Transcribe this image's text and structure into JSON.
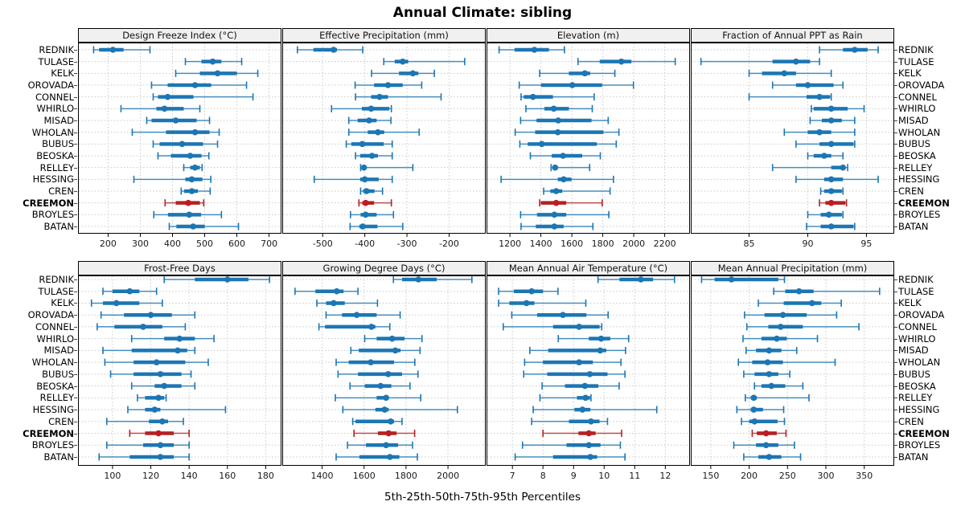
{
  "title": "Annual Climate: sibling",
  "footer": "5th-25th-50th-75th-95th Percentiles",
  "colors": {
    "series": "#1c76b4",
    "highlight": "#b22222",
    "highlight_dot": "#c01a22",
    "grid": "#c9c9c9",
    "strip_bg": "#f0f0f0",
    "panel_border": "#000000",
    "tick": "#000000",
    "tick_label": "#1a1a1a"
  },
  "chart_data": {
    "type": "trellis-percentile-whisker",
    "title": "Annual Climate: sibling",
    "xlabel": "5th-25th-50th-75th-95th Percentiles",
    "layout": {
      "grid_rows": 2,
      "grid_cols": 4,
      "row_gridlines": "dotted",
      "legend": "none"
    },
    "percentiles": [
      5,
      25,
      50,
      75,
      95
    ],
    "stations": [
      "REDNIK",
      "TULASE",
      "KELK",
      "OROVADA",
      "CONNEL",
      "WHIRLO",
      "MISAD",
      "WHOLAN",
      "BUBUS",
      "BEOSKA",
      "RELLEY",
      "HESSING",
      "CREN",
      "CREEMON",
      "BROYLES",
      "BATAN"
    ],
    "highlight_station": "CREEMON",
    "panels": [
      {
        "title": "Design Freeze Index (°C)",
        "ticks": [
          200,
          300,
          400,
          500,
          600,
          700
        ],
        "xlim": [
          109,
          736
        ],
        "values": [
          [
            155,
            172,
            215,
            248,
            330
          ],
          [
            440,
            490,
            525,
            552,
            615
          ],
          [
            410,
            485,
            540,
            600,
            665
          ],
          [
            335,
            385,
            470,
            520,
            630
          ],
          [
            340,
            355,
            385,
            465,
            650
          ],
          [
            240,
            350,
            375,
            435,
            485
          ],
          [
            320,
            335,
            410,
            475,
            515
          ],
          [
            275,
            380,
            470,
            515,
            545
          ],
          [
            340,
            360,
            430,
            495,
            540
          ],
          [
            355,
            395,
            455,
            490,
            513
          ],
          [
            435,
            455,
            470,
            485,
            492
          ],
          [
            280,
            440,
            460,
            493,
            519
          ],
          [
            427,
            436,
            460,
            479,
            517
          ],
          [
            377,
            410,
            449,
            485,
            497
          ],
          [
            342,
            386,
            452,
            489,
            552
          ],
          [
            390,
            412,
            464,
            500,
            605
          ]
        ]
      },
      {
        "title": "Effective Precipitation (mm)",
        "ticks": [
          -500,
          -400,
          -300,
          -200
        ],
        "xlim": [
          -594,
          -115
        ],
        "values": [
          [
            -560,
            -522,
            -474,
            -466,
            -405
          ],
          [
            -355,
            -329,
            -310,
            -297,
            -163
          ],
          [
            -384,
            -319,
            -286,
            -273,
            -235
          ],
          [
            -423,
            -378,
            -345,
            -310,
            -265
          ],
          [
            -422,
            -385,
            -365,
            -345,
            -219
          ],
          [
            -479,
            -407,
            -385,
            -342,
            -337
          ],
          [
            -438,
            -417,
            -390,
            -372,
            -338
          ],
          [
            -438,
            -393,
            -369,
            -354,
            -271
          ],
          [
            -444,
            -432,
            -406,
            -355,
            -335
          ],
          [
            -422,
            -411,
            -383,
            -369,
            -335
          ],
          [
            -410,
            -406,
            -402,
            -398,
            -286
          ],
          [
            -520,
            -411,
            -400,
            -367,
            -335
          ],
          [
            -410,
            -404,
            -396,
            -377,
            -358
          ],
          [
            -414,
            -406,
            -398,
            -378,
            -337
          ],
          [
            -434,
            -410,
            -398,
            -372,
            -332
          ],
          [
            -435,
            -413,
            -405,
            -370,
            -310
          ]
        ]
      },
      {
        "title": "Elevation (m)",
        "ticks": [
          1200,
          1400,
          1600,
          1800,
          2000,
          2200
        ],
        "xlim": [
          1054,
          2358
        ],
        "values": [
          [
            1130,
            1230,
            1358,
            1452,
            1552
          ],
          [
            1640,
            1780,
            1920,
            1985,
            2268
          ],
          [
            1392,
            1581,
            1684,
            1718,
            1878
          ],
          [
            1260,
            1401,
            1603,
            1796,
            1998
          ],
          [
            1272,
            1289,
            1349,
            1478,
            1744
          ],
          [
            1303,
            1423,
            1483,
            1581,
            1732
          ],
          [
            1269,
            1372,
            1512,
            1727,
            1835
          ],
          [
            1234,
            1363,
            1509,
            1804,
            1904
          ],
          [
            1264,
            1315,
            1406,
            1761,
            1887
          ],
          [
            1332,
            1470,
            1543,
            1667,
            1784
          ],
          [
            1466,
            1475,
            1492,
            1509,
            1715
          ],
          [
            1143,
            1509,
            1547,
            1598,
            1869
          ],
          [
            1418,
            1461,
            1499,
            1538,
            1847
          ],
          [
            1392,
            1401,
            1499,
            1564,
            1796
          ],
          [
            1269,
            1375,
            1487,
            1564,
            1839
          ],
          [
            1272,
            1367,
            1487,
            1547,
            1736
          ]
        ]
      },
      {
        "title": "Fraction of Annual PPT as Rain",
        "ticks": [
          85,
          90,
          95
        ],
        "xlim": [
          80.1,
          97.3
        ],
        "values": [
          [
            91,
            93,
            94,
            95.1,
            96
          ],
          [
            80.9,
            87,
            89,
            90.2,
            91
          ],
          [
            85,
            86.1,
            88,
            89,
            92
          ],
          [
            87,
            89,
            90,
            92.2,
            93
          ],
          [
            85,
            89.9,
            91,
            91.9,
            92
          ],
          [
            90.3,
            90.5,
            92,
            93.4,
            94.8
          ],
          [
            90.2,
            91.2,
            92,
            92.9,
            94
          ],
          [
            88,
            90,
            91,
            92,
            94
          ],
          [
            89,
            91,
            92,
            93.9,
            94
          ],
          [
            90,
            90.5,
            91.4,
            92,
            93
          ],
          [
            87,
            92,
            93,
            93.2,
            93.4
          ],
          [
            89,
            91.4,
            92,
            93,
            96
          ],
          [
            91.1,
            91.4,
            92,
            92.9,
            93
          ],
          [
            91,
            91.5,
            92,
            93.2,
            93.3
          ],
          [
            90,
            91.1,
            91.8,
            92.9,
            93
          ],
          [
            89.9,
            91.1,
            92,
            93.9,
            94
          ]
        ]
      },
      {
        "title": "Frost-Free Days",
        "ticks": [
          100,
          120,
          140,
          160,
          180
        ],
        "xlim": [
          82.4,
          187.8
        ],
        "values": [
          [
            127,
            143,
            160,
            171,
            182
          ],
          [
            95,
            100,
            109,
            114,
            123
          ],
          [
            89,
            95,
            102,
            114,
            126
          ],
          [
            94,
            106,
            120,
            131,
            143
          ],
          [
            92,
            101,
            116,
            126,
            138
          ],
          [
            110,
            127,
            135,
            143,
            153
          ],
          [
            95,
            110,
            134,
            139,
            143
          ],
          [
            96,
            111,
            123,
            138,
            150
          ],
          [
            99,
            111,
            125,
            136,
            141
          ],
          [
            110,
            122,
            127,
            136,
            143
          ],
          [
            113,
            117,
            124,
            127,
            128
          ],
          [
            108,
            117,
            122,
            125,
            159
          ],
          [
            97,
            119,
            126,
            129,
            137
          ],
          [
            109,
            117,
            124,
            132,
            140
          ],
          [
            97,
            116,
            125,
            132,
            140
          ],
          [
            93,
            109,
            125,
            132,
            140
          ]
        ]
      },
      {
        "title": "Growing Degree Days (°C)",
        "ticks": [
          1400,
          1600,
          1800,
          2000
        ],
        "xlim": [
          1214,
          2176
        ],
        "values": [
          [
            1740,
            1781,
            1859,
            1946,
            2114
          ],
          [
            1271,
            1368,
            1470,
            1502,
            1571
          ],
          [
            1375,
            1419,
            1455,
            1508,
            1664
          ],
          [
            1419,
            1495,
            1565,
            1660,
            1772
          ],
          [
            1385,
            1414,
            1635,
            1654,
            1723
          ],
          [
            1603,
            1660,
            1734,
            1793,
            1876
          ],
          [
            1537,
            1575,
            1749,
            1774,
            1867
          ],
          [
            1467,
            1527,
            1632,
            1743,
            1842
          ],
          [
            1476,
            1571,
            1715,
            1781,
            1857
          ],
          [
            1533,
            1603,
            1679,
            1730,
            1819
          ],
          [
            1463,
            1660,
            1705,
            1718,
            1870
          ],
          [
            1499,
            1654,
            1698,
            1717,
            2045
          ],
          [
            1546,
            1559,
            1727,
            1743,
            1781
          ],
          [
            1552,
            1666,
            1717,
            1755,
            1841
          ],
          [
            1521,
            1609,
            1705,
            1762,
            1831
          ],
          [
            1467,
            1578,
            1723,
            1768,
            1854
          ]
        ]
      },
      {
        "title": "Mean Annual Air Temperature (°C)",
        "ticks": [
          7,
          8,
          9,
          10,
          11,
          12
        ],
        "xlim": [
          6.18,
          12.78
        ],
        "values": [
          [
            9.8,
            10.5,
            11.2,
            11.6,
            12.3
          ],
          [
            6.55,
            7.05,
            7.63,
            8.0,
            8.49
          ],
          [
            6.55,
            6.9,
            7.46,
            7.72,
            9.4
          ],
          [
            6.98,
            7.81,
            8.65,
            9.42,
            10.13
          ],
          [
            6.7,
            8.33,
            9.18,
            9.85,
            9.92
          ],
          [
            8.5,
            9.5,
            9.9,
            10.2,
            10.8
          ],
          [
            7.57,
            8.17,
            9.87,
            10.07,
            10.7
          ],
          [
            7.4,
            8.0,
            9.18,
            9.63,
            10.55
          ],
          [
            7.37,
            8.14,
            9.53,
            10.11,
            10.68
          ],
          [
            7.97,
            8.72,
            9.37,
            9.81,
            10.49
          ],
          [
            7.9,
            9.11,
            9.39,
            9.54,
            9.57
          ],
          [
            7.68,
            9.03,
            9.29,
            9.55,
            11.72
          ],
          [
            7.63,
            8.85,
            9.57,
            9.85,
            10.11
          ],
          [
            8.0,
            9.16,
            9.5,
            9.72,
            10.57
          ],
          [
            7.33,
            8.77,
            9.5,
            9.88,
            10.53
          ],
          [
            7.09,
            8.33,
            9.55,
            9.77,
            10.68
          ]
        ]
      },
      {
        "title": "Mean Annual Precipitation (mm)",
        "ticks": [
          150,
          200,
          250,
          300,
          350
        ],
        "xlim": [
          125,
          388
        ],
        "values": [
          [
            138,
            155,
            177,
            238,
            246
          ],
          [
            232,
            247,
            265,
            284,
            370
          ],
          [
            212,
            245,
            282,
            294,
            320
          ],
          [
            194,
            220,
            244,
            275,
            314
          ],
          [
            197,
            225,
            241,
            270,
            343
          ],
          [
            192,
            216,
            236,
            249,
            289
          ],
          [
            196,
            209,
            226,
            242,
            262
          ],
          [
            186,
            204,
            224,
            244,
            312
          ],
          [
            193,
            207,
            226,
            238,
            253
          ],
          [
            207,
            216,
            229,
            247,
            270
          ],
          [
            195,
            202,
            206,
            210,
            278
          ],
          [
            184,
            202,
            206,
            218,
            245
          ],
          [
            190,
            200,
            207,
            237,
            246
          ],
          [
            204,
            210,
            222,
            236,
            248
          ],
          [
            180,
            209,
            222,
            238,
            259
          ],
          [
            193,
            212,
            226,
            242,
            267
          ]
        ]
      }
    ]
  }
}
